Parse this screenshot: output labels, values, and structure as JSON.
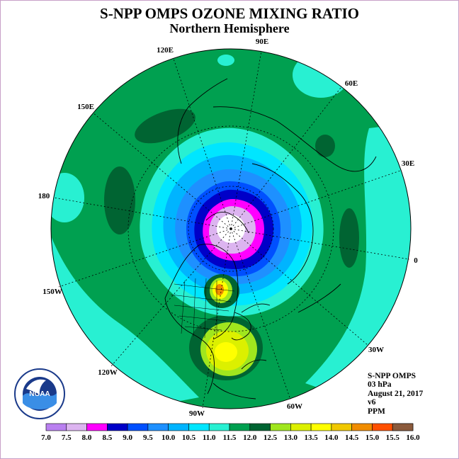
{
  "title": "S-NPP OMPS OZONE MIXING RATIO",
  "subtitle": "Northern Hemisphere",
  "longitude_labels": [
    "90E",
    "60E",
    "30E",
    "0",
    "30W",
    "60W",
    "90W",
    "120W",
    "150W",
    "180",
    "150E",
    "120E"
  ],
  "info": {
    "instrument": "S-NPP OMPS",
    "level": "03 hPa",
    "date": "August 21, 2017",
    "version": "v6",
    "units": "PPM"
  },
  "colorbar": {
    "ticks": [
      "7.0",
      "7.5",
      "8.0",
      "8.5",
      "9.0",
      "9.5",
      "10.0",
      "10.5",
      "11.0",
      "11.5",
      "12.0",
      "12.5",
      "13.0",
      "13.5",
      "14.0",
      "14.5",
      "15.0",
      "15.5",
      "16.0"
    ],
    "colors": [
      "#b980f0",
      "#dcb4f0",
      "#ff00ff",
      "#0000c8",
      "#0050ff",
      "#1e90ff",
      "#00b4ff",
      "#00e6ff",
      "#28f0d2",
      "#00a050",
      "#006432",
      "#a0e61e",
      "#dcf000",
      "#ffff00",
      "#f0c800",
      "#f08c00",
      "#ff5000",
      "#e60000",
      "#8b5a3c"
    ]
  },
  "logo": {
    "text": "NOAA",
    "icon": "noaa-logo"
  },
  "map_colors": {
    "ocean_band": "#28f0d2",
    "background_field": "#00a050",
    "dark_green": "#006432",
    "cyan": "#00e6ff",
    "light_blue": "#00b4ff",
    "medium_blue": "#1e90ff",
    "blue": "#0050ff",
    "navy": "#0000c8",
    "magenta": "#ff00ff",
    "lavender": "#dcb4f0",
    "yellow_green": "#a0e61e",
    "yellow": "#dcf000"
  }
}
